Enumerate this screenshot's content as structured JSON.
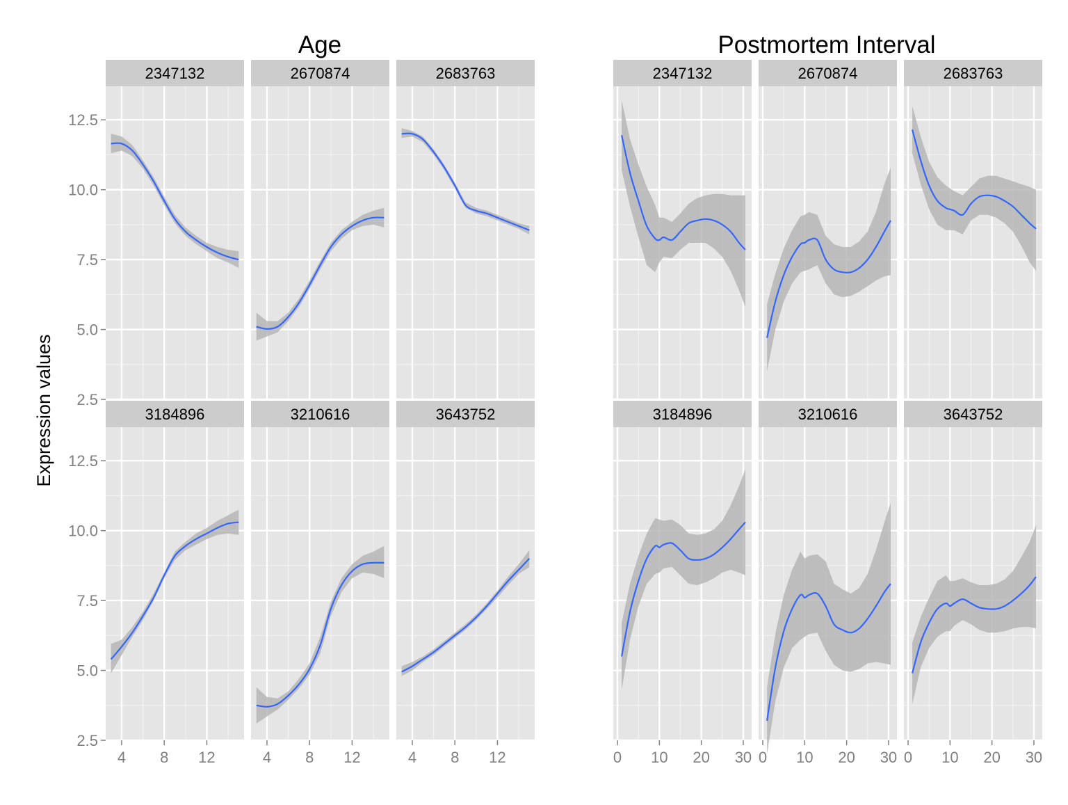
{
  "figure": {
    "ylabel": "Expression values"
  },
  "chart_data": [
    {
      "type": "line",
      "title": "Age",
      "xlabel": "",
      "ylabel": "Expression values",
      "xlim": [
        2.5,
        15.5
      ],
      "ylim": [
        2.5,
        13.7
      ],
      "xticks": [
        4,
        8,
        12
      ],
      "yticks": [
        2.5,
        5.0,
        7.5,
        10.0,
        12.5
      ],
      "grid": true,
      "legend": "none",
      "line_color": "#3366ff",
      "band_color": "#b3b3b3",
      "panels": [
        {
          "label": "2347132",
          "x": [
            3,
            4,
            5,
            6,
            7,
            8,
            9,
            10,
            11,
            12,
            13,
            14,
            15
          ],
          "y": [
            11.65,
            11.65,
            11.4,
            10.9,
            10.3,
            9.6,
            8.95,
            8.5,
            8.2,
            7.95,
            7.75,
            7.6,
            7.5
          ],
          "lower": [
            11.3,
            11.4,
            11.2,
            10.75,
            10.15,
            9.45,
            8.8,
            8.35,
            8.05,
            7.8,
            7.55,
            7.4,
            7.2
          ],
          "upper": [
            12.0,
            11.9,
            11.6,
            11.05,
            10.45,
            9.75,
            9.1,
            8.65,
            8.35,
            8.1,
            7.95,
            7.85,
            7.8
          ]
        },
        {
          "label": "2670874",
          "x": [
            3,
            4,
            5,
            6,
            7,
            8,
            9,
            10,
            11,
            12,
            13,
            14,
            15
          ],
          "y": [
            5.1,
            5.02,
            5.1,
            5.45,
            5.95,
            6.6,
            7.3,
            7.95,
            8.4,
            8.7,
            8.9,
            9.0,
            9.0
          ],
          "lower": [
            4.6,
            4.75,
            4.9,
            5.3,
            5.8,
            6.45,
            7.15,
            7.8,
            8.25,
            8.55,
            8.7,
            8.75,
            8.65
          ],
          "upper": [
            5.6,
            5.3,
            5.3,
            5.6,
            6.1,
            6.75,
            7.45,
            8.1,
            8.55,
            8.85,
            9.1,
            9.25,
            9.35
          ]
        },
        {
          "label": "2683763",
          "x": [
            3,
            4,
            5,
            6,
            7,
            8,
            9,
            10,
            11,
            12,
            13,
            14,
            15
          ],
          "y": [
            12.0,
            12.0,
            11.8,
            11.35,
            10.8,
            10.15,
            9.45,
            9.25,
            9.15,
            9.0,
            8.85,
            8.7,
            8.55
          ],
          "lower": [
            11.85,
            11.9,
            11.7,
            11.25,
            10.7,
            10.05,
            9.35,
            9.15,
            9.05,
            8.9,
            8.75,
            8.6,
            8.4
          ],
          "upper": [
            12.2,
            12.1,
            11.9,
            11.45,
            10.9,
            10.25,
            9.55,
            9.35,
            9.25,
            9.1,
            8.95,
            8.8,
            8.7
          ]
        },
        {
          "label": "3184896",
          "x": [
            3,
            4,
            5,
            6,
            7,
            8,
            9,
            10,
            11,
            12,
            13,
            14,
            15
          ],
          "y": [
            5.4,
            5.85,
            6.35,
            6.95,
            7.6,
            8.4,
            9.1,
            9.45,
            9.7,
            9.9,
            10.1,
            10.25,
            10.3
          ],
          "lower": [
            4.9,
            5.55,
            6.2,
            6.8,
            7.5,
            8.3,
            8.95,
            9.3,
            9.5,
            9.7,
            9.85,
            9.9,
            9.85
          ],
          "upper": [
            5.95,
            6.1,
            6.55,
            7.1,
            7.75,
            8.5,
            9.25,
            9.6,
            9.9,
            10.1,
            10.35,
            10.55,
            10.75
          ]
        },
        {
          "label": "3210616",
          "x": [
            3,
            4,
            5,
            6,
            7,
            8,
            9,
            10,
            11,
            12,
            13,
            14,
            15
          ],
          "y": [
            3.75,
            3.7,
            3.8,
            4.1,
            4.5,
            5.05,
            5.9,
            7.2,
            8.05,
            8.55,
            8.8,
            8.85,
            8.85
          ],
          "lower": [
            3.1,
            3.35,
            3.6,
            3.95,
            4.35,
            4.85,
            5.6,
            6.95,
            7.8,
            8.3,
            8.5,
            8.45,
            8.3
          ],
          "upper": [
            4.4,
            4.05,
            4.0,
            4.25,
            4.7,
            5.25,
            6.2,
            7.45,
            8.3,
            8.8,
            9.1,
            9.25,
            9.45
          ]
        },
        {
          "label": "3643752",
          "x": [
            3,
            4,
            5,
            6,
            7,
            8,
            9,
            10,
            11,
            12,
            13,
            14,
            15
          ],
          "y": [
            4.95,
            5.15,
            5.4,
            5.65,
            5.95,
            6.25,
            6.55,
            6.9,
            7.3,
            7.75,
            8.2,
            8.6,
            9.0
          ],
          "lower": [
            4.8,
            5.0,
            5.3,
            5.55,
            5.85,
            6.15,
            6.45,
            6.8,
            7.2,
            7.6,
            8.05,
            8.45,
            8.7
          ],
          "upper": [
            5.15,
            5.3,
            5.5,
            5.75,
            6.05,
            6.35,
            6.65,
            7.0,
            7.4,
            7.85,
            8.35,
            8.8,
            9.3
          ]
        }
      ]
    },
    {
      "type": "line",
      "title": "Postmortem Interval",
      "xlabel": "",
      "ylabel": "",
      "xlim": [
        -1,
        32
      ],
      "ylim": [
        2.5,
        13.7
      ],
      "xticks": [
        0,
        10,
        20,
        30
      ],
      "yticks": [
        2.5,
        5.0,
        7.5,
        10.0,
        12.5
      ],
      "grid": true,
      "legend": "none",
      "line_color": "#3366ff",
      "band_color": "#b3b3b3",
      "panels": [
        {
          "label": "2347132",
          "x": [
            1,
            3,
            5,
            7,
            9,
            10,
            11,
            13,
            15,
            17,
            19,
            21,
            23,
            25,
            27,
            29,
            30.5
          ],
          "y": [
            11.95,
            10.6,
            9.6,
            8.7,
            8.25,
            8.2,
            8.3,
            8.2,
            8.5,
            8.8,
            8.9,
            8.95,
            8.9,
            8.75,
            8.5,
            8.1,
            7.85
          ],
          "lower": [
            10.7,
            9.4,
            8.3,
            7.3,
            7.05,
            7.4,
            7.6,
            7.55,
            7.85,
            8.1,
            8.1,
            8.1,
            7.9,
            7.6,
            7.1,
            6.4,
            5.8
          ],
          "upper": [
            13.2,
            11.8,
            10.9,
            10.1,
            9.45,
            9.0,
            9.0,
            8.85,
            9.15,
            9.5,
            9.7,
            9.8,
            9.85,
            9.85,
            9.8,
            9.8,
            9.8
          ]
        },
        {
          "label": "2670874",
          "x": [
            1,
            3,
            5,
            7,
            9,
            10,
            11,
            13,
            15,
            17,
            19,
            21,
            23,
            25,
            27,
            29,
            30.5
          ],
          "y": [
            4.7,
            6.0,
            6.95,
            7.6,
            8.05,
            8.1,
            8.2,
            8.2,
            7.5,
            7.15,
            7.05,
            7.05,
            7.2,
            7.5,
            7.95,
            8.5,
            8.9
          ],
          "lower": [
            3.5,
            5.0,
            6.0,
            6.65,
            7.05,
            7.1,
            7.15,
            7.3,
            6.65,
            6.25,
            6.15,
            6.2,
            6.35,
            6.55,
            6.75,
            6.9,
            6.95
          ],
          "upper": [
            5.9,
            7.0,
            7.9,
            8.55,
            9.05,
            9.1,
            9.2,
            9.1,
            8.35,
            8.05,
            7.95,
            7.95,
            8.15,
            8.5,
            9.2,
            10.2,
            10.8
          ]
        },
        {
          "label": "2683763",
          "x": [
            1,
            3,
            5,
            7,
            9,
            10,
            11,
            13,
            15,
            17,
            19,
            21,
            23,
            25,
            27,
            29,
            30.5
          ],
          "y": [
            12.15,
            11.05,
            10.15,
            9.6,
            9.35,
            9.3,
            9.25,
            9.1,
            9.5,
            9.75,
            9.8,
            9.75,
            9.6,
            9.4,
            9.1,
            8.8,
            8.6
          ],
          "lower": [
            11.3,
            10.2,
            9.3,
            8.75,
            8.55,
            8.55,
            8.55,
            8.4,
            8.9,
            9.1,
            9.1,
            9.0,
            8.8,
            8.5,
            8.0,
            7.4,
            7.1
          ],
          "upper": [
            13.0,
            11.9,
            11.0,
            10.45,
            10.15,
            10.05,
            9.95,
            9.8,
            10.1,
            10.4,
            10.5,
            10.5,
            10.4,
            10.3,
            10.2,
            10.1,
            10.0
          ]
        },
        {
          "label": "3184896",
          "x": [
            1,
            3,
            5,
            7,
            9,
            10,
            11,
            13,
            15,
            17,
            19,
            21,
            23,
            25,
            27,
            29,
            30.5
          ],
          "y": [
            5.5,
            7.1,
            8.2,
            9.0,
            9.45,
            9.4,
            9.5,
            9.55,
            9.3,
            9.0,
            8.95,
            9.0,
            9.15,
            9.4,
            9.7,
            10.05,
            10.3
          ],
          "lower": [
            4.3,
            6.1,
            7.3,
            8.1,
            8.45,
            8.5,
            8.65,
            8.7,
            8.4,
            8.1,
            8.05,
            8.15,
            8.3,
            8.5,
            8.6,
            8.5,
            8.4
          ],
          "upper": [
            6.7,
            8.1,
            9.1,
            9.9,
            10.45,
            10.4,
            10.35,
            10.4,
            10.2,
            9.9,
            9.85,
            9.9,
            10.05,
            10.35,
            10.9,
            11.6,
            12.2
          ]
        },
        {
          "label": "3210616",
          "x": [
            1,
            3,
            5,
            7,
            9,
            10,
            11,
            13,
            15,
            17,
            19,
            21,
            23,
            25,
            27,
            29,
            30.5
          ],
          "y": [
            3.2,
            5.1,
            6.4,
            7.2,
            7.7,
            7.6,
            7.7,
            7.75,
            7.3,
            6.65,
            6.45,
            6.35,
            6.5,
            6.85,
            7.3,
            7.8,
            8.1
          ],
          "lower": [
            2.0,
            3.9,
            5.1,
            5.8,
            6.1,
            6.2,
            6.3,
            6.35,
            5.7,
            5.2,
            5.0,
            4.95,
            5.05,
            5.25,
            5.3,
            5.25,
            5.2
          ],
          "upper": [
            4.4,
            6.3,
            7.7,
            8.6,
            9.25,
            9.0,
            9.1,
            9.15,
            8.9,
            8.1,
            7.9,
            7.75,
            7.95,
            8.45,
            9.3,
            10.3,
            11.0
          ]
        },
        {
          "label": "3643752",
          "x": [
            1,
            3,
            5,
            7,
            9,
            10,
            11,
            13,
            15,
            17,
            19,
            21,
            23,
            25,
            27,
            29,
            30.5
          ],
          "y": [
            4.9,
            6.0,
            6.7,
            7.2,
            7.4,
            7.3,
            7.4,
            7.55,
            7.4,
            7.25,
            7.2,
            7.2,
            7.3,
            7.5,
            7.75,
            8.05,
            8.35
          ],
          "lower": [
            3.8,
            5.1,
            5.8,
            6.2,
            6.4,
            6.4,
            6.6,
            6.8,
            6.65,
            6.45,
            6.35,
            6.35,
            6.4,
            6.5,
            6.55,
            6.55,
            6.5
          ],
          "upper": [
            6.0,
            6.9,
            7.6,
            8.2,
            8.4,
            8.2,
            8.2,
            8.3,
            8.15,
            8.05,
            8.05,
            8.1,
            8.25,
            8.55,
            9.05,
            9.6,
            10.2
          ]
        }
      ]
    }
  ]
}
